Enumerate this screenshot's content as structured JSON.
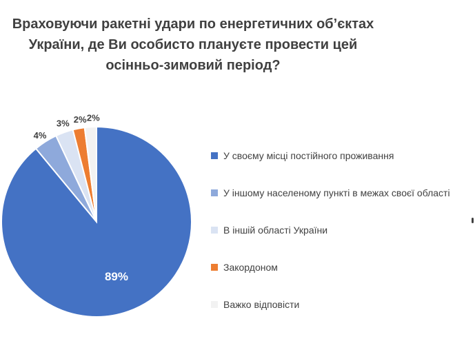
{
  "chart_data": {
    "type": "pie",
    "title": "Враховуючи ракетні удари по енергетичних об’єктах України, де Ви особисто плануєте провести цей осінньо-зимовий період?",
    "categories": [
      "У своєму місці постійного проживання",
      "У іншому населеному пункті в межах своєї області",
      "В іншій області України",
      "Закордоном",
      "Важко відповісти"
    ],
    "values": [
      89,
      4,
      3,
      2,
      2
    ],
    "data_labels": [
      "89%",
      "4%",
      "3%",
      "2%",
      "2%"
    ],
    "colors": [
      "#4472C4",
      "#8EA9DB",
      "#DAE3F3",
      "#ED7D31",
      "#F2F2F2"
    ],
    "legend_position": "right",
    "start_angle": "12 o'clock",
    "direction": "clockwise"
  }
}
